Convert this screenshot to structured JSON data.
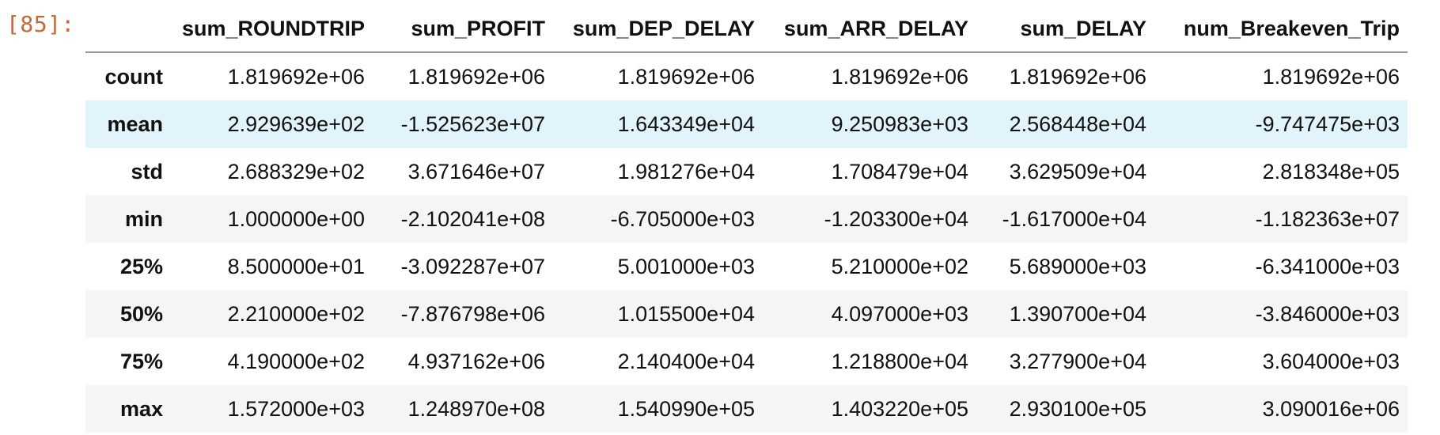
{
  "cell": {
    "prompt": "[85]:"
  },
  "table": {
    "columns": [
      "sum_ROUNDTRIP",
      "sum_PROFIT",
      "sum_DEP_DELAY",
      "sum_ARR_DELAY",
      "sum_DELAY",
      "num_Breakeven_Trip"
    ],
    "rows": [
      {
        "label": "count",
        "cells": [
          "1.819692e+06",
          "1.819692e+06",
          "1.819692e+06",
          "1.819692e+06",
          "1.819692e+06",
          "1.819692e+06"
        ]
      },
      {
        "label": "mean",
        "cells": [
          "2.929639e+02",
          "-1.525623e+07",
          "1.643349e+04",
          "9.250983e+03",
          "2.568448e+04",
          "-9.747475e+03"
        ]
      },
      {
        "label": "std",
        "cells": [
          "2.688329e+02",
          "3.671646e+07",
          "1.981276e+04",
          "1.708479e+04",
          "3.629509e+04",
          "2.818348e+05"
        ]
      },
      {
        "label": "min",
        "cells": [
          "1.000000e+00",
          "-2.102041e+08",
          "-6.705000e+03",
          "-1.203300e+04",
          "-1.617000e+04",
          "-1.182363e+07"
        ]
      },
      {
        "label": "25%",
        "cells": [
          "8.500000e+01",
          "-3.092287e+07",
          "5.001000e+03",
          "5.210000e+02",
          "5.689000e+03",
          "-6.341000e+03"
        ]
      },
      {
        "label": "50%",
        "cells": [
          "2.210000e+02",
          "-7.876798e+06",
          "1.015500e+04",
          "4.097000e+03",
          "1.390700e+04",
          "-3.846000e+03"
        ]
      },
      {
        "label": "75%",
        "cells": [
          "4.190000e+02",
          "4.937162e+06",
          "2.140400e+04",
          "1.218800e+04",
          "3.277900e+04",
          "3.604000e+03"
        ]
      },
      {
        "label": "max",
        "cells": [
          "1.572000e+03",
          "1.248970e+08",
          "1.540990e+05",
          "1.403220e+05",
          "2.930100e+05",
          "3.090016e+06"
        ]
      }
    ],
    "hovered_row": "mean"
  },
  "colors": {
    "prompt": "#c4683b",
    "row_hover": "#e1f3fb",
    "row_stripe": "#f5f5f5",
    "header_rule": "#9a9a9a"
  }
}
